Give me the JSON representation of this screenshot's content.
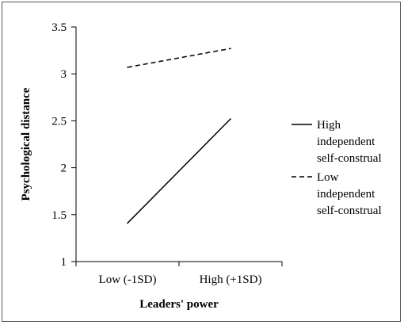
{
  "chart_data": {
    "type": "line",
    "title": "",
    "xlabel": "Leaders' power",
    "ylabel": "Psychological distance",
    "categories": [
      "Low (-1SD)",
      "High (+1SD)"
    ],
    "ylim": [
      1,
      3.5
    ],
    "yticks": [
      "1",
      "1.5",
      "2",
      "2.5",
      "3",
      "3.5"
    ],
    "grid": false,
    "legend_position": "right",
    "series": [
      {
        "name_lines": [
          "High",
          "independent",
          "self-construal"
        ],
        "values": [
          1.41,
          2.52
        ],
        "style": "solid",
        "color": "#000000"
      },
      {
        "name_lines": [
          "Low",
          "independent",
          "self-construal"
        ],
        "values": [
          3.07,
          3.27
        ],
        "style": "dashed",
        "color": "#000000"
      }
    ]
  }
}
